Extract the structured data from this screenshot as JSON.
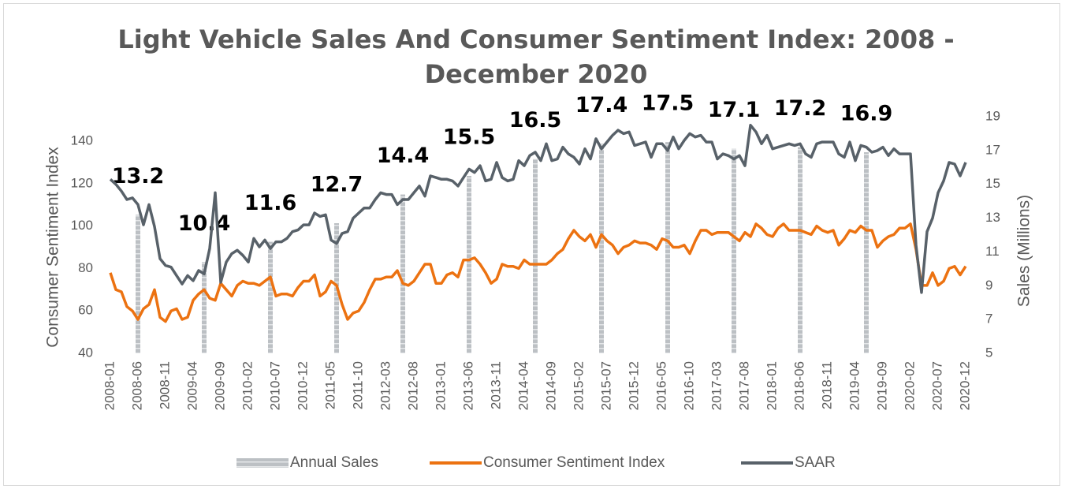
{
  "chart_data": {
    "type": "combo",
    "title": "Light Vehicle Sales And Consumer Sentiment Index: 2008 - December 2020",
    "y_label": "Consumer Sentiment Index",
    "y2_label": "Sales (Millions)",
    "categories": [
      "2008-01",
      null,
      null,
      null,
      null,
      "2008-06",
      null,
      null,
      null,
      null,
      "2008-11",
      null,
      null,
      null,
      null,
      "2009-04",
      null,
      null,
      null,
      null,
      "2009-09",
      null,
      null,
      null,
      null,
      "2010-02",
      null,
      null,
      null,
      null,
      "2010-07",
      null,
      null,
      null,
      null,
      "2010-12",
      null,
      null,
      null,
      null,
      "2011-05",
      null,
      null,
      null,
      null,
      "2011-10",
      null,
      null,
      null,
      null,
      "2012-03",
      null,
      null,
      null,
      null,
      "2012-08",
      null,
      null,
      null,
      null,
      "2013-01",
      null,
      null,
      null,
      null,
      "2013-06",
      null,
      null,
      null,
      null,
      "2013-11",
      null,
      null,
      null,
      null,
      "2014-04",
      null,
      null,
      null,
      null,
      "2014-09",
      null,
      null,
      null,
      null,
      "2015-02",
      null,
      null,
      null,
      null,
      "2015-07",
      null,
      null,
      null,
      null,
      "2015-12",
      null,
      null,
      null,
      null,
      "2016-05",
      null,
      null,
      null,
      null,
      "2016-10",
      null,
      null,
      null,
      null,
      "2017-03",
      null,
      null,
      null,
      null,
      "2017-08",
      null,
      null,
      null,
      null,
      "2018-01",
      null,
      null,
      null,
      null,
      "2018-06",
      null,
      null,
      null,
      null,
      "2018-11",
      null,
      null,
      null,
      null,
      "2019-04",
      null,
      null,
      null,
      null,
      "2019-09",
      null,
      null,
      null,
      null,
      "2020-02",
      null,
      null,
      null,
      null,
      "2020-07",
      null,
      null,
      null,
      null,
      "2020-12"
    ],
    "ylim": [
      40,
      140
    ],
    "yticks": [
      40,
      60,
      80,
      100,
      120,
      140
    ],
    "y2lim": [
      5,
      19
    ],
    "y2ticks": [
      5,
      7,
      9,
      11,
      13,
      15,
      17,
      19
    ],
    "series": [
      {
        "name": "Annual Sales",
        "kind": "bar",
        "axis": "y2",
        "color": "#bcc0c4",
        "values": [
          null,
          null,
          null,
          null,
          null,
          13.2,
          null,
          null,
          null,
          null,
          null,
          null,
          null,
          null,
          null,
          null,
          null,
          10.4,
          null,
          null,
          null,
          null,
          null,
          null,
          null,
          null,
          null,
          null,
          null,
          11.6,
          null,
          null,
          null,
          null,
          null,
          null,
          null,
          null,
          null,
          null,
          null,
          12.7,
          null,
          null,
          null,
          null,
          null,
          null,
          null,
          null,
          null,
          null,
          null,
          14.4,
          null,
          null,
          null,
          null,
          null,
          null,
          null,
          null,
          null,
          null,
          null,
          15.5,
          null,
          null,
          null,
          null,
          null,
          null,
          null,
          null,
          null,
          null,
          null,
          16.5,
          null,
          null,
          null,
          null,
          null,
          null,
          null,
          null,
          null,
          null,
          null,
          17.4,
          null,
          null,
          null,
          null,
          null,
          null,
          null,
          null,
          null,
          null,
          null,
          17.5,
          null,
          null,
          null,
          null,
          null,
          null,
          null,
          null,
          null,
          null,
          null,
          17.1,
          null,
          null,
          null,
          null,
          null,
          null,
          null,
          null,
          null,
          null,
          null,
          17.2,
          null,
          null,
          null,
          null,
          null,
          null,
          null,
          null,
          null,
          null,
          null,
          16.9,
          null,
          null,
          null,
          null,
          null,
          null,
          null,
          null,
          null,
          null,
          null,
          null,
          null,
          null,
          null,
          null,
          null,
          null
        ]
      },
      {
        "name": "Consumer Sentiment Index",
        "kind": "line",
        "axis": "y",
        "color": "#ec7211",
        "values": [
          78,
          70,
          69,
          62,
          60,
          56,
          61,
          63,
          70,
          57,
          55,
          60,
          61,
          56,
          57,
          65,
          68,
          70,
          66,
          65,
          73,
          70,
          67,
          72,
          74,
          73,
          73,
          72,
          74,
          76,
          67,
          68,
          68,
          67,
          71,
          74,
          74,
          77,
          67,
          69,
          74,
          72,
          63,
          56,
          59,
          60,
          64,
          70,
          75,
          75,
          76,
          76,
          79,
          73,
          72,
          74,
          78,
          82,
          82,
          73,
          73,
          77,
          78,
          76,
          84,
          84,
          85,
          82,
          78,
          73,
          75,
          82,
          81,
          81,
          80,
          84,
          82,
          82,
          82,
          82,
          84,
          87,
          89,
          94,
          98,
          95,
          93,
          96,
          90,
          96,
          93,
          91,
          87,
          90,
          91,
          93,
          92,
          92,
          91,
          89,
          94,
          93,
          90,
          90,
          91,
          87,
          93,
          98,
          98,
          96,
          97,
          97,
          97,
          95,
          93,
          97,
          95,
          101,
          99,
          96,
          95,
          99,
          101,
          98,
          98,
          98,
          97,
          96,
          100,
          98,
          97,
          98,
          91,
          94,
          98,
          97,
          100,
          98,
          98,
          90,
          93,
          95,
          96,
          99,
          99,
          101,
          89,
          72,
          72,
          78,
          72,
          74,
          80,
          81,
          77,
          81
        ]
      },
      {
        "name": "SAAR",
        "kind": "line",
        "axis": "y2",
        "color": "#586169",
        "values": [
          15.3,
          15.0,
          14.6,
          14.1,
          14.2,
          13.8,
          12.6,
          13.8,
          12.5,
          10.6,
          10.2,
          10.1,
          9.6,
          9.1,
          9.6,
          9.3,
          9.9,
          9.7,
          11.2,
          14.5,
          9.2,
          10.4,
          10.9,
          11.1,
          10.8,
          10.4,
          11.8,
          11.3,
          11.7,
          11.2,
          11.6,
          11.6,
          11.8,
          12.2,
          12.3,
          12.6,
          12.6,
          13.3,
          13.1,
          13.2,
          11.7,
          11.5,
          12.1,
          12.2,
          13.0,
          13.3,
          13.6,
          13.6,
          14.1,
          14.5,
          14.4,
          14.4,
          13.8,
          14.1,
          14.1,
          14.5,
          14.9,
          14.3,
          15.5,
          15.4,
          15.3,
          15.3,
          15.2,
          14.9,
          15.4,
          15.9,
          15.7,
          16.1,
          15.2,
          15.3,
          16.3,
          15.4,
          15.2,
          15.3,
          16.4,
          16.1,
          16.7,
          16.9,
          16.4,
          17.4,
          16.4,
          16.5,
          17.2,
          16.8,
          16.6,
          16.2,
          17.1,
          16.5,
          17.7,
          17.1,
          17.5,
          17.9,
          18.2,
          18.0,
          18.1,
          17.3,
          17.4,
          17.5,
          16.6,
          17.4,
          17.4,
          17.0,
          17.8,
          17.1,
          17.6,
          18.0,
          17.8,
          17.9,
          17.5,
          17.5,
          16.5,
          16.8,
          16.7,
          16.5,
          16.7,
          16.1,
          18.5,
          18.1,
          17.4,
          17.9,
          17.1,
          17.2,
          17.3,
          17.4,
          17.3,
          17.4,
          16.8,
          16.6,
          17.4,
          17.5,
          17.5,
          17.5,
          16.8,
          16.6,
          17.5,
          16.4,
          17.3,
          17.2,
          16.9,
          17.0,
          17.2,
          16.7,
          17.1,
          16.8,
          16.8,
          16.8,
          11.4,
          8.6,
          12.2,
          13.0,
          14.5,
          15.2,
          16.3,
          16.2,
          15.5,
          16.3
        ]
      }
    ]
  }
}
